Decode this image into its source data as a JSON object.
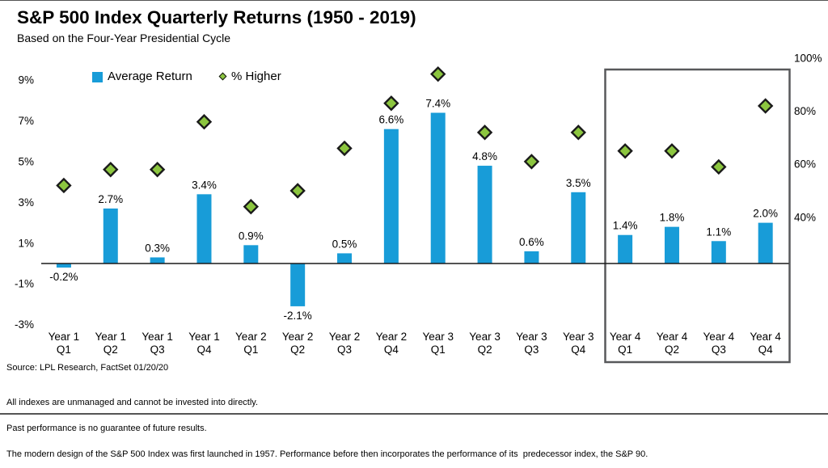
{
  "chart_data": {
    "type": "bar",
    "title": "S&P 500 Index Quarterly Returns (1950 - 2019)",
    "subtitle": "Based on the Four-Year Presidential Cycle",
    "categories": [
      {
        "year": "Year 1",
        "quarter": "Q1"
      },
      {
        "year": "Year 1",
        "quarter": "Q2"
      },
      {
        "year": "Year 1",
        "quarter": "Q3"
      },
      {
        "year": "Year 1",
        "quarter": "Q4"
      },
      {
        "year": "Year 2",
        "quarter": "Q1"
      },
      {
        "year": "Year 2",
        "quarter": "Q2"
      },
      {
        "year": "Year 2",
        "quarter": "Q3"
      },
      {
        "year": "Year 2",
        "quarter": "Q4"
      },
      {
        "year": "Year 3",
        "quarter": "Q1"
      },
      {
        "year": "Year 3",
        "quarter": "Q2"
      },
      {
        "year": "Year 3",
        "quarter": "Q3"
      },
      {
        "year": "Year 3",
        "quarter": "Q4"
      },
      {
        "year": "Year 4",
        "quarter": "Q1"
      },
      {
        "year": "Year 4",
        "quarter": "Q2"
      },
      {
        "year": "Year 4",
        "quarter": "Q3"
      },
      {
        "year": "Year 4",
        "quarter": "Q4"
      }
    ],
    "series": [
      {
        "name": "Average Return",
        "type": "bar",
        "axis": "left",
        "unit": "%",
        "color": "#189CD8",
        "values": [
          -0.2,
          2.7,
          0.3,
          3.4,
          0.9,
          -2.1,
          0.5,
          6.6,
          7.4,
          4.8,
          0.6,
          3.5,
          1.4,
          1.8,
          1.1,
          2.0
        ],
        "labels": [
          "-0.2%",
          "2.7%",
          "0.3%",
          "3.4%",
          "0.9%",
          "-2.1%",
          "0.5%",
          "6.6%",
          "7.4%",
          "4.8%",
          "0.6%",
          "3.5%",
          "1.4%",
          "1.8%",
          "1.1%",
          "2.0%"
        ]
      },
      {
        "name": "% Higher",
        "type": "scatter",
        "marker": "diamond",
        "axis": "right",
        "unit": "%",
        "color": "#8CC63F",
        "marker_stroke": "#1A1A1A",
        "values": [
          52,
          58,
          58,
          76,
          44,
          50,
          66,
          83,
          94,
          72,
          61,
          72,
          65,
          65,
          59,
          82
        ]
      }
    ],
    "left_axis": {
      "tick_labels": [
        "9%",
        "7%",
        "5%",
        "3%",
        "1%",
        "-1%",
        "-3%"
      ],
      "tick_values": [
        9,
        7,
        5,
        3,
        1,
        -1,
        -3
      ],
      "range": [
        -3.2,
        10.2
      ]
    },
    "right_axis": {
      "tick_labels": [
        "100%",
        "80%",
        "60%",
        "40%"
      ],
      "tick_values": [
        100,
        80,
        60,
        40
      ],
      "range": [
        0,
        100
      ]
    },
    "grid": false,
    "legend_position": "top-left",
    "axis_color": "#1A1A1A",
    "highlight_box": {
      "start_category_index": 12,
      "end_category_index": 15,
      "color": "#58595B"
    }
  },
  "footer": {
    "source": "Source: LPL Research, FactSet 01/20/20",
    "disclaimers": [
      "All indexes are unmanaged and cannot be invested into directly.",
      "Past performance is no guarantee of future results.",
      "The modern design of the S&P 500 Index was first launched in 1957. Performance before then incorporates the performance of its  predecessor index, the S&P 90."
    ]
  }
}
